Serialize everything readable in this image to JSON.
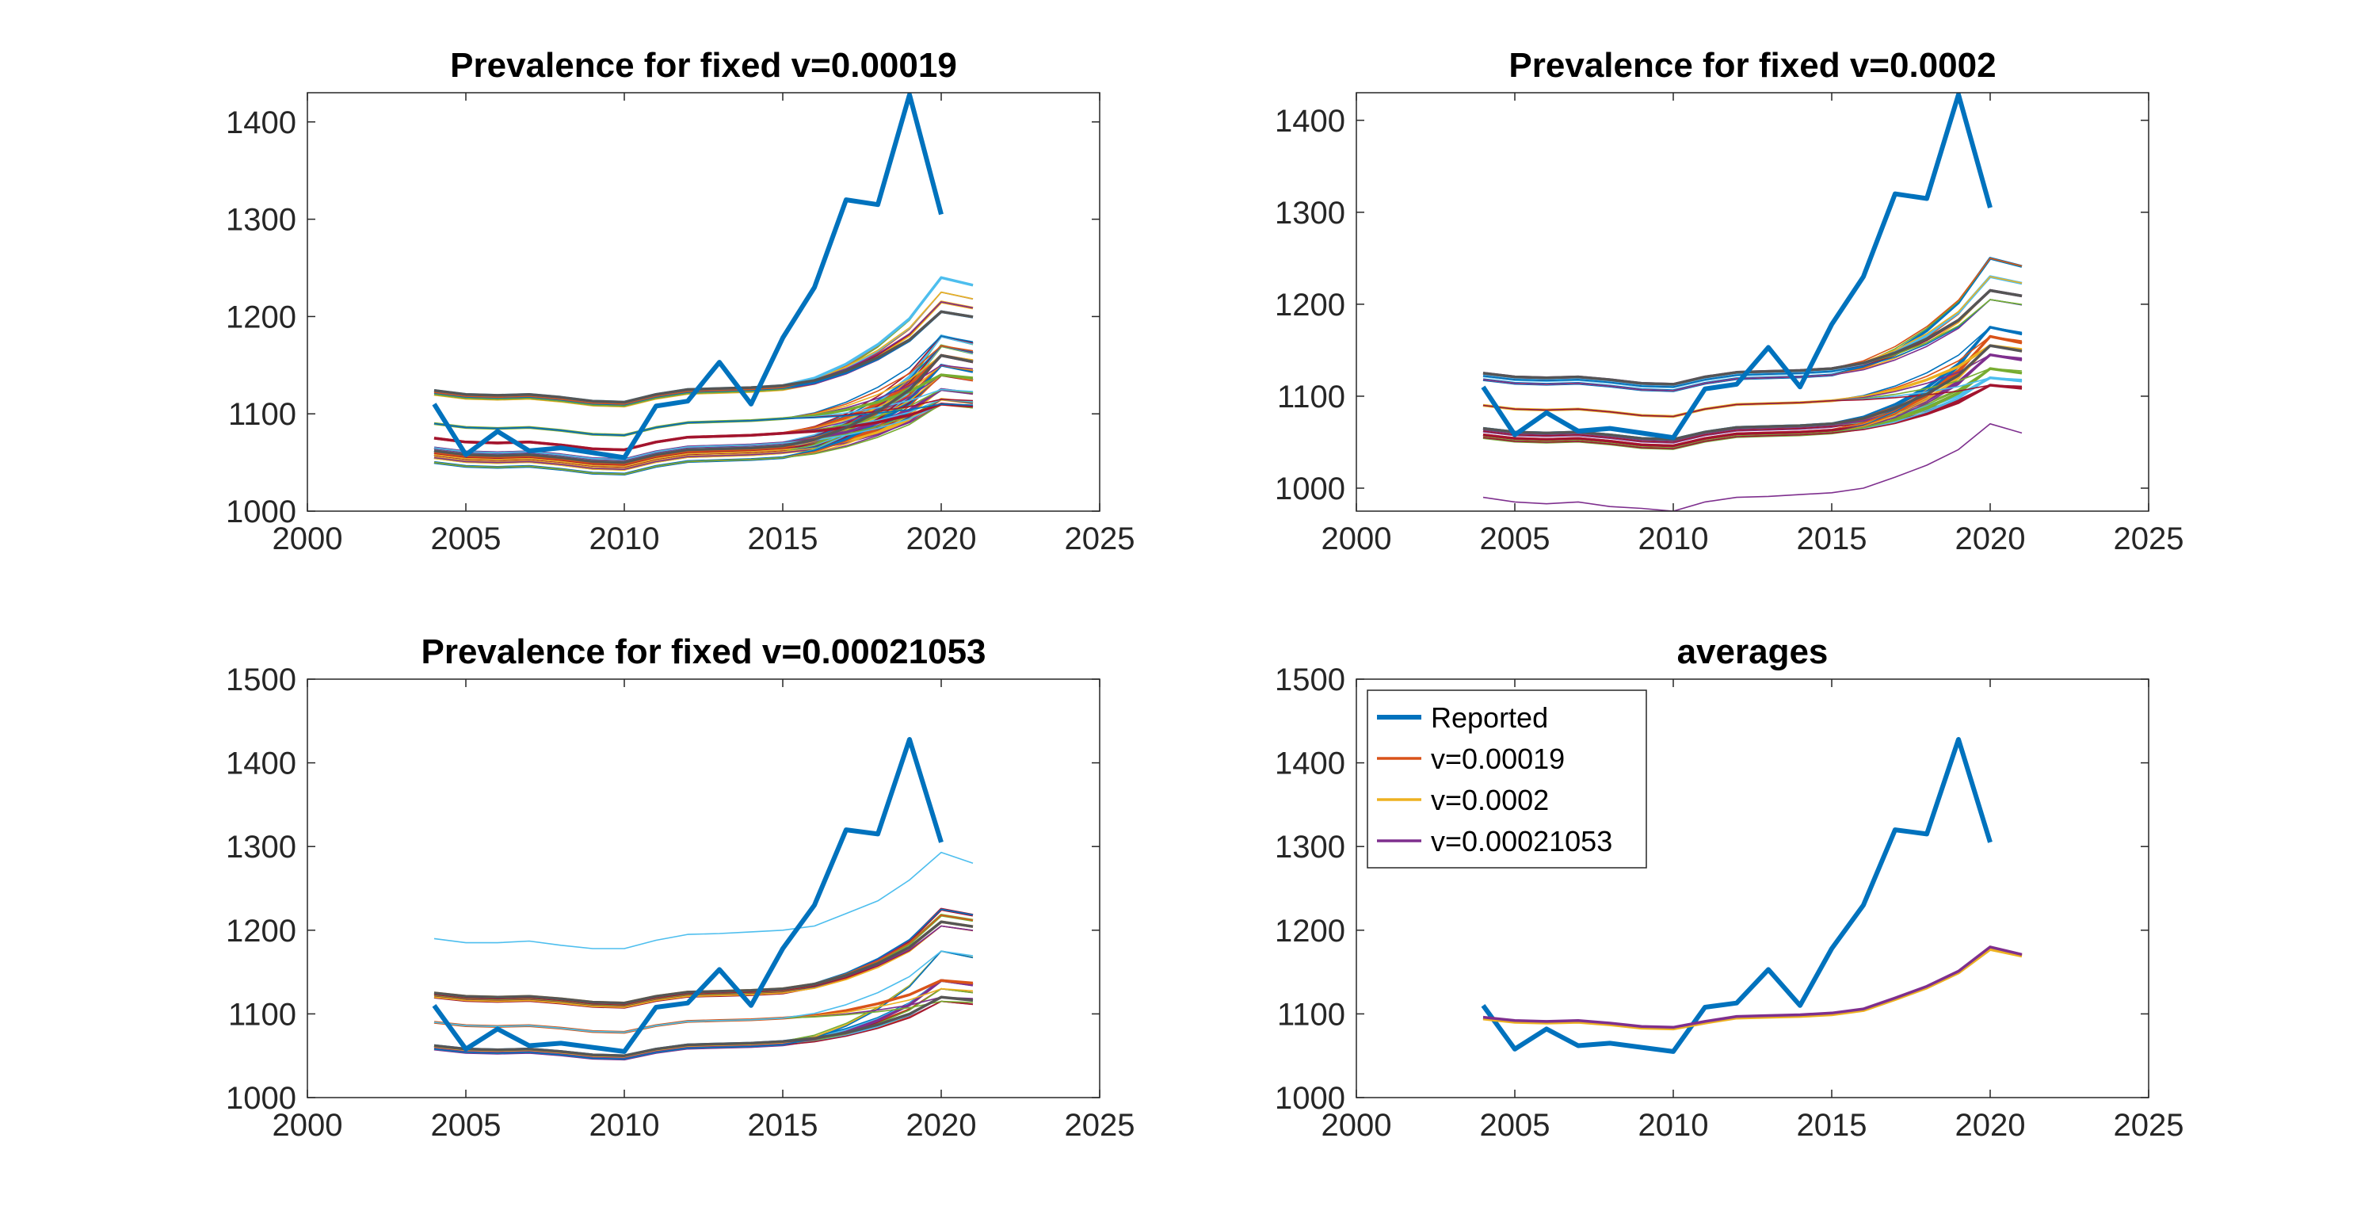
{
  "chart_data": [
    {
      "type": "line",
      "title": "Prevalence for fixed v=0.00019",
      "xlabel": "",
      "ylabel": "",
      "xlim": [
        2000,
        2025
      ],
      "ylim": [
        1000,
        1430
      ],
      "xticks": [
        "2000",
        "2005",
        "2010",
        "2015",
        "2020",
        "2025"
      ],
      "yticks": [
        "1000",
        "1100",
        "1200",
        "1300",
        "1400"
      ],
      "ytick_values": [
        1000,
        1100,
        1200,
        1300,
        1400
      ],
      "reported": {
        "name": "Reported",
        "x": [
          2004,
          2005,
          2006,
          2007,
          2008,
          2009,
          2010,
          2011,
          2012,
          2013,
          2014,
          2015,
          2016,
          2017,
          2018,
          2019,
          2020
        ],
        "values": [
          1110,
          1058,
          1082,
          1062,
          1065,
          1060,
          1055,
          1108,
          1113,
          1153,
          1110,
          1178,
          1230,
          1320,
          1315,
          1428,
          1305
        ]
      },
      "simulations": {
        "x_start": 2004,
        "bases": [
          1062,
          1060,
          1058,
          1055,
          1050,
          1065,
          1075,
          1090,
          1120,
          1122,
          1124
        ],
        "ends": [
          1180,
          1170,
          1160,
          1150,
          1140,
          1125,
          1115,
          1110,
          1225,
          1215,
          1205,
          1240
        ],
        "colors": [
          "#0072BD",
          "#D95319",
          "#EDB120",
          "#7E2F8E",
          "#77AC30",
          "#4DBEEE",
          "#A2142F"
        ]
      }
    },
    {
      "type": "line",
      "title": "Prevalence for fixed v=0.0002",
      "xlabel": "",
      "ylabel": "",
      "xlim": [
        2000,
        2025
      ],
      "ylim": [
        975,
        1430
      ],
      "xticks": [
        "2000",
        "2005",
        "2010",
        "2015",
        "2020",
        "2025"
      ],
      "yticks": [
        "1000",
        "1100",
        "1200",
        "1300",
        "1400"
      ],
      "ytick_values": [
        1000,
        1100,
        1200,
        1300,
        1400
      ],
      "reported": {
        "name": "Reported",
        "x": [
          2004,
          2005,
          2006,
          2007,
          2008,
          2009,
          2010,
          2011,
          2012,
          2013,
          2014,
          2015,
          2016,
          2017,
          2018,
          2019,
          2020
        ],
        "values": [
          1110,
          1058,
          1082,
          1062,
          1065,
          1060,
          1055,
          1108,
          1113,
          1153,
          1110,
          1178,
          1230,
          1320,
          1315,
          1428,
          1305
        ]
      },
      "simulations": {
        "x_start": 2004,
        "bases": [
          1065,
          1062,
          1058,
          1055,
          1090,
          1118,
          1122,
          1125
        ],
        "ends": [
          1175,
          1165,
          1155,
          1145,
          1130,
          1120,
          1112,
          1250,
          1230,
          1215,
          1205
        ],
        "colors": [
          "#0072BD",
          "#D95319",
          "#EDB120",
          "#7E2F8E",
          "#77AC30",
          "#4DBEEE",
          "#A2142F"
        ],
        "outlier": {
          "x": [
            2004,
            2005,
            2006,
            2007,
            2008,
            2009,
            2010,
            2011,
            2012,
            2013,
            2014,
            2015,
            2016,
            2017,
            2018,
            2019,
            2020,
            2021
          ],
          "values": [
            990,
            985,
            983,
            985,
            980,
            978,
            975,
            985,
            990,
            991,
            993,
            995,
            1000,
            1012,
            1025,
            1042,
            1070,
            1060
          ],
          "color": "#7E2F8E"
        }
      }
    },
    {
      "type": "line",
      "title": "Prevalence for fixed v=0.00021053",
      "xlabel": "",
      "ylabel": "",
      "xlim": [
        2000,
        2025
      ],
      "ylim": [
        1000,
        1500
      ],
      "xticks": [
        "2000",
        "2005",
        "2010",
        "2015",
        "2020",
        "2025"
      ],
      "yticks": [
        "1000",
        "1100",
        "1200",
        "1300",
        "1400",
        "1500"
      ],
      "ytick_values": [
        1000,
        1100,
        1200,
        1300,
        1400,
        1500
      ],
      "reported": {
        "name": "Reported",
        "x": [
          2004,
          2005,
          2006,
          2007,
          2008,
          2009,
          2010,
          2011,
          2012,
          2013,
          2014,
          2015,
          2016,
          2017,
          2018,
          2019,
          2020
        ],
        "values": [
          1110,
          1058,
          1082,
          1062,
          1065,
          1060,
          1055,
          1108,
          1113,
          1153,
          1110,
          1178,
          1230,
          1320,
          1315,
          1428,
          1305
        ]
      },
      "simulations": {
        "x_start": 2004,
        "bases": [
          1062,
          1060,
          1058,
          1090,
          1120,
          1123,
          1125
        ],
        "ends": [
          1140,
          1130,
          1120,
          1115,
          1175,
          1225,
          1218,
          1210,
          1205
        ],
        "colors": [
          "#0072BD",
          "#D95319",
          "#EDB120",
          "#7E2F8E",
          "#77AC30",
          "#4DBEEE",
          "#A2142F"
        ],
        "outlier": {
          "x": [
            2004,
            2005,
            2006,
            2007,
            2008,
            2009,
            2010,
            2011,
            2012,
            2013,
            2014,
            2015,
            2016,
            2017,
            2018,
            2019,
            2020,
            2021
          ],
          "values": [
            1190,
            1185,
            1185,
            1187,
            1182,
            1178,
            1178,
            1188,
            1195,
            1196,
            1198,
            1200,
            1205,
            1220,
            1235,
            1260,
            1293,
            1280
          ],
          "color": "#4DBEEE"
        }
      }
    },
    {
      "type": "line",
      "title": "averages",
      "xlabel": "",
      "ylabel": "",
      "xlim": [
        2000,
        2025
      ],
      "ylim": [
        1000,
        1500
      ],
      "xticks": [
        "2000",
        "2005",
        "2010",
        "2015",
        "2020",
        "2025"
      ],
      "yticks": [
        "1000",
        "1100",
        "1200",
        "1300",
        "1400",
        "1500"
      ],
      "ytick_values": [
        1000,
        1100,
        1200,
        1300,
        1400,
        1500
      ],
      "legend": "top-left",
      "series": [
        {
          "name": "Reported",
          "color": "#0072BD",
          "x": [
            2004,
            2005,
            2006,
            2007,
            2008,
            2009,
            2010,
            2011,
            2012,
            2013,
            2014,
            2015,
            2016,
            2017,
            2018,
            2019,
            2020
          ],
          "values": [
            1110,
            1058,
            1082,
            1062,
            1065,
            1060,
            1055,
            1108,
            1113,
            1153,
            1110,
            1178,
            1230,
            1320,
            1315,
            1428,
            1305
          ]
        },
        {
          "name": "v=0.00019",
          "color": "#D95319",
          "x": [
            2004,
            2005,
            2006,
            2007,
            2008,
            2009,
            2010,
            2011,
            2012,
            2013,
            2014,
            2015,
            2016,
            2017,
            2018,
            2019,
            2020,
            2021
          ],
          "values": [
            1095,
            1091,
            1090,
            1091,
            1088,
            1084,
            1083,
            1090,
            1096,
            1097,
            1098,
            1100,
            1105,
            1118,
            1132,
            1150,
            1178,
            1170
          ]
        },
        {
          "name": "v=0.0002",
          "color": "#EDB120",
          "x": [
            2004,
            2005,
            2006,
            2007,
            2008,
            2009,
            2010,
            2011,
            2012,
            2013,
            2014,
            2015,
            2016,
            2017,
            2018,
            2019,
            2020,
            2021
          ],
          "values": [
            1094,
            1090,
            1089,
            1090,
            1087,
            1083,
            1082,
            1089,
            1095,
            1096,
            1097,
            1099,
            1104,
            1117,
            1131,
            1149,
            1177,
            1169
          ]
        },
        {
          "name": "v=0.00021053",
          "color": "#7E2F8E",
          "x": [
            2004,
            2005,
            2006,
            2007,
            2008,
            2009,
            2010,
            2011,
            2012,
            2013,
            2014,
            2015,
            2016,
            2017,
            2018,
            2019,
            2020,
            2021
          ],
          "values": [
            1096,
            1092,
            1091,
            1092,
            1089,
            1085,
            1084,
            1091,
            1097,
            1098,
            1099,
            1101,
            1106,
            1119,
            1133,
            1151,
            1180,
            1171
          ]
        }
      ]
    }
  ]
}
